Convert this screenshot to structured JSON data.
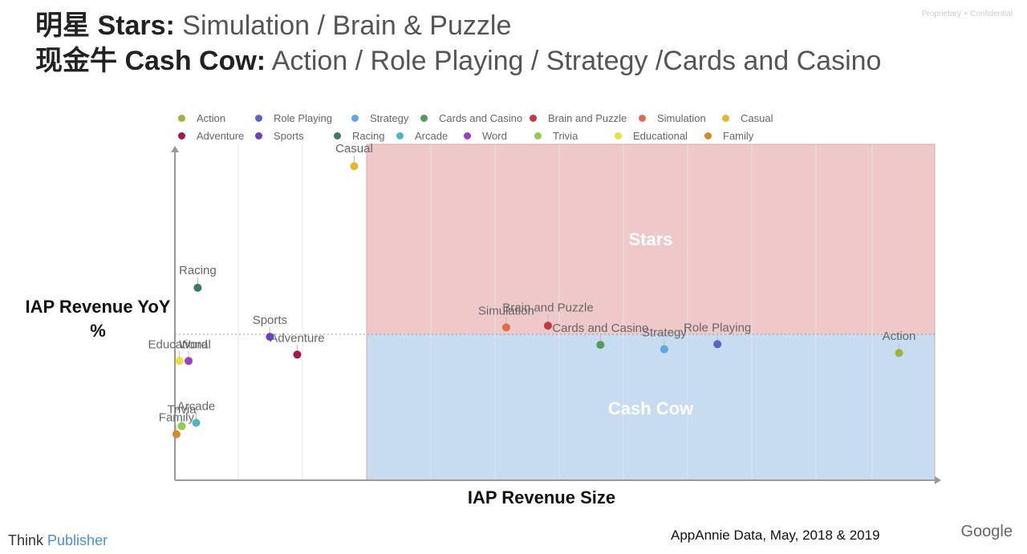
{
  "header": {
    "line1_cn": "明星",
    "line1_bold": "Stars:",
    "line1_rest": "Simulation / Brain & Puzzle",
    "line2_cn": "现金牛",
    "line2_bold": "Cash Cow:",
    "line2_rest": "Action / Role Playing / Strategy /Cards and Casino",
    "confidential": "Proprietary + Confidential"
  },
  "footer": {
    "brand_prefix": "Think",
    "brand_accent": "Publisher",
    "source": "AppAnnie Data, May, 2018 & 2019",
    "logo": "Google"
  },
  "chart_data": {
    "type": "scatter",
    "xlabel": "IAP Revenue Size",
    "ylabel": "IAP Revenue YoY %",
    "grid": true,
    "legend_position": "top",
    "quadrants": [
      {
        "label": "Stars",
        "color": "#efc9c9"
      },
      {
        "label": "Cash Cow",
        "color": "#c7dbf1"
      }
    ],
    "series": [
      {
        "name": "Action",
        "color": "#9ab43e",
        "x": 0.953,
        "y": 0.379
      },
      {
        "name": "Role Playing",
        "color": "#5b63c9",
        "x": 0.714,
        "y": 0.405
      },
      {
        "name": "Strategy",
        "color": "#5aa8e6",
        "x": 0.644,
        "y": 0.39
      },
      {
        "name": "Cards and Casino",
        "color": "#4f9d58",
        "x": 0.56,
        "y": 0.403
      },
      {
        "name": "Brain and Puzzle",
        "color": "#c23b3b",
        "x": 0.491,
        "y": 0.46
      },
      {
        "name": "Simulation",
        "color": "#e26a4e",
        "x": 0.436,
        "y": 0.455
      },
      {
        "name": "Casual",
        "color": "#e0b82a",
        "x": 0.236,
        "y": 0.935
      },
      {
        "name": "Adventure",
        "color": "#a3174a",
        "x": 0.161,
        "y": 0.374
      },
      {
        "name": "Sports",
        "color": "#6a3fc2",
        "x": 0.125,
        "y": 0.427
      },
      {
        "name": "Racing",
        "color": "#3e7a5e",
        "x": 0.03,
        "y": 0.573
      },
      {
        "name": "Arcade",
        "color": "#4fb4c4",
        "x": 0.028,
        "y": 0.171
      },
      {
        "name": "Word",
        "color": "#9b3fc9",
        "x": 0.018,
        "y": 0.355
      },
      {
        "name": "Trivia",
        "color": "#8ccf4e",
        "x": 0.009,
        "y": 0.161
      },
      {
        "name": "Educational",
        "color": "#e8e03c",
        "x": 0.006,
        "y": 0.355
      },
      {
        "name": "Family",
        "color": "#d88a2a",
        "x": 0.002,
        "y": 0.137
      }
    ],
    "legend_order": [
      [
        "Action",
        "Role Playing",
        "Strategy",
        "Cards and Casino",
        "Brain and Puzzle",
        "Simulation",
        "Casual"
      ],
      [
        "Adventure",
        "Sports",
        "Racing",
        "Arcade",
        "Word",
        "Trivia",
        "Educational",
        "Family"
      ]
    ],
    "point_labels": [
      "Action",
      "Role Playing",
      "Strategy",
      "Cards and Casino",
      "Brain and Puzzle",
      "Simulation",
      "Casual",
      "Adventure",
      "Sports",
      "Racing",
      "Arcade",
      "Word",
      "Trivia",
      "Educational",
      "Family"
    ]
  }
}
